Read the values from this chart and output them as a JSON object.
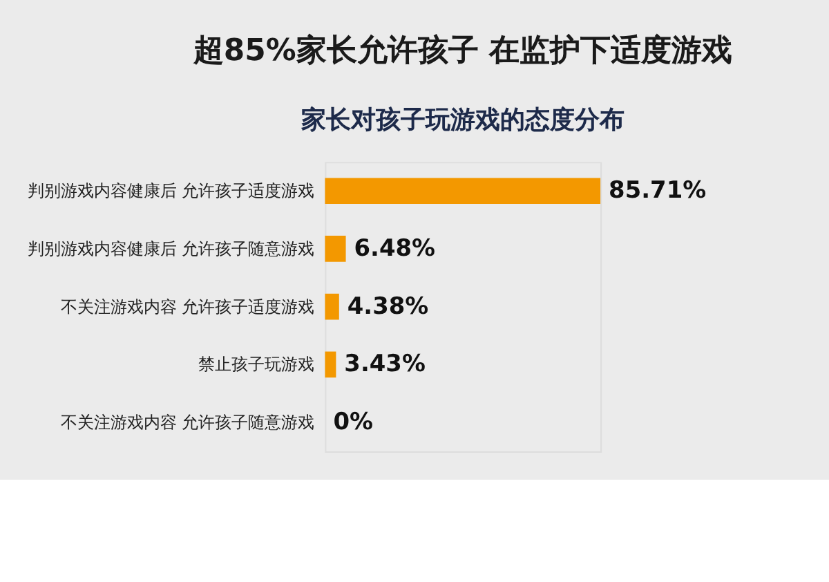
{
  "chart_data": {
    "type": "bar",
    "orientation": "horizontal",
    "title": "超85%家长允许孩子 在监护下适度游戏",
    "subtitle": "家长对孩子玩游戏的态度分布",
    "categories": [
      "判别游戏内容健康后 允许孩子适度游戏",
      "判别游戏内容健康后 允许孩子随意游戏",
      "不关注游戏内容 允许孩子适度游戏",
      "禁止孩子玩游戏",
      "不关注游戏内容 允许孩子随意游戏"
    ],
    "values": [
      85.71,
      6.48,
      4.38,
      3.43,
      0
    ],
    "value_labels": [
      "85.71%",
      "6.48%",
      "4.38%",
      "3.43%",
      "0%"
    ],
    "color": "#f39800"
  }
}
